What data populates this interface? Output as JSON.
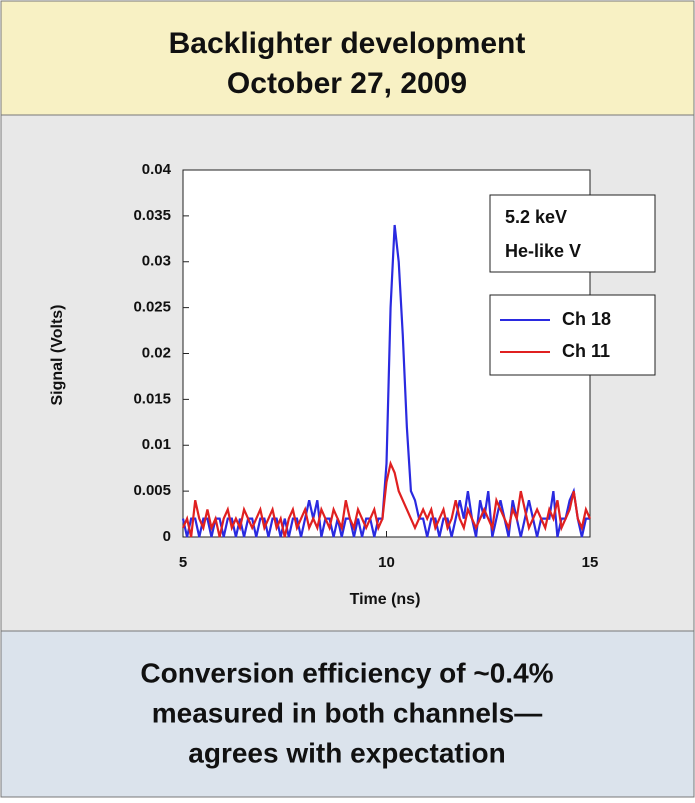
{
  "chart_data": {
    "type": "line",
    "title": "Backlighter development",
    "subtitle": "October 27, 2009",
    "xlabel": "Time (ns)",
    "ylabel": "Signal (Volts)",
    "annotations": [
      "5.2 keV",
      "He-like V"
    ],
    "legend": "upper right",
    "xlim": [
      5,
      15
    ],
    "xticks": [
      5,
      10,
      15
    ],
    "ylim": [
      0,
      0.04
    ],
    "yticks": [
      0,
      0.005,
      0.01,
      0.015,
      0.02,
      0.025,
      0.03,
      0.035,
      0.04
    ],
    "x": [
      5.0,
      5.1,
      5.2,
      5.3,
      5.4,
      5.5,
      5.6,
      5.7,
      5.8,
      5.9,
      6.0,
      6.1,
      6.2,
      6.3,
      6.4,
      6.5,
      6.6,
      6.7,
      6.8,
      6.9,
      7.0,
      7.1,
      7.2,
      7.3,
      7.4,
      7.5,
      7.6,
      7.7,
      7.8,
      7.9,
      8.0,
      8.1,
      8.2,
      8.3,
      8.4,
      8.5,
      8.6,
      8.7,
      8.8,
      8.9,
      9.0,
      9.1,
      9.2,
      9.3,
      9.4,
      9.5,
      9.6,
      9.7,
      9.8,
      9.9,
      10.0,
      10.1,
      10.2,
      10.3,
      10.4,
      10.5,
      10.6,
      10.7,
      10.8,
      10.9,
      11.0,
      11.1,
      11.2,
      11.3,
      11.4,
      11.5,
      11.6,
      11.7,
      11.8,
      11.9,
      12.0,
      12.1,
      12.2,
      12.3,
      12.4,
      12.5,
      12.6,
      12.7,
      12.8,
      12.9,
      13.0,
      13.1,
      13.2,
      13.3,
      13.4,
      13.5,
      13.6,
      13.7,
      13.8,
      13.9,
      14.0,
      14.1,
      14.2,
      14.3,
      14.4,
      14.5,
      14.6,
      14.7,
      14.8,
      14.9,
      15.0
    ],
    "series": [
      {
        "name": "Ch 18",
        "color": "#2a2ae0",
        "values": [
          0.002,
          0,
          0.002,
          0.002,
          0,
          0.002,
          0.002,
          0,
          0.002,
          0.002,
          0,
          0.002,
          0.002,
          0,
          0.002,
          0,
          0.002,
          0.002,
          0,
          0.002,
          0.002,
          0,
          0.002,
          0.002,
          0,
          0.002,
          0,
          0.002,
          0.002,
          0,
          0.002,
          0.004,
          0.002,
          0.004,
          0,
          0.002,
          0.002,
          0,
          0.002,
          0,
          0.002,
          0.002,
          0,
          0.002,
          0,
          0.002,
          0.002,
          0,
          0.002,
          0.002,
          0.008,
          0.025,
          0.034,
          0.03,
          0.022,
          0.012,
          0.005,
          0.004,
          0.002,
          0.002,
          0,
          0.002,
          0.002,
          0,
          0.002,
          0.002,
          0,
          0.002,
          0.004,
          0.002,
          0.005,
          0.002,
          0,
          0.004,
          0.002,
          0.005,
          0,
          0.002,
          0.004,
          0.002,
          0,
          0.004,
          0.002,
          0,
          0.002,
          0.004,
          0.002,
          0,
          0.002,
          0.002,
          0.002,
          0.005,
          0,
          0.002,
          0.002,
          0.004,
          0.005,
          0.002,
          0,
          0.002,
          0.002
        ]
      },
      {
        "name": "Ch 11",
        "color": "#e02020",
        "values": [
          0.001,
          0.002,
          0,
          0.004,
          0.002,
          0.001,
          0.003,
          0.001,
          0.002,
          0,
          0.002,
          0.003,
          0.001,
          0.002,
          0.001,
          0.003,
          0.002,
          0.001,
          0.002,
          0.003,
          0.001,
          0.002,
          0.003,
          0.001,
          0.002,
          0,
          0.002,
          0.003,
          0.001,
          0.002,
          0.003,
          0.001,
          0.002,
          0.001,
          0.003,
          0.002,
          0.001,
          0.003,
          0.002,
          0.001,
          0.004,
          0.002,
          0.001,
          0.003,
          0.002,
          0.001,
          0.002,
          0.003,
          0.001,
          0.002,
          0.006,
          0.008,
          0.007,
          0.005,
          0.004,
          0.003,
          0.002,
          0.001,
          0.002,
          0.003,
          0.002,
          0.003,
          0.001,
          0.002,
          0.003,
          0.001,
          0.002,
          0.004,
          0.002,
          0.001,
          0.003,
          0.002,
          0.001,
          0.002,
          0.003,
          0.002,
          0.001,
          0.004,
          0.003,
          0.002,
          0.001,
          0.003,
          0.002,
          0.005,
          0.003,
          0.001,
          0.002,
          0.003,
          0.002,
          0.001,
          0.003,
          0.002,
          0.004,
          0.001,
          0.002,
          0.003,
          0.005,
          0.002,
          0.001,
          0.003,
          0.002
        ]
      }
    ]
  },
  "footer": {
    "lines": [
      "Conversion efficiency of ~0.4%",
      "measured in both channels—",
      "agrees with expectation"
    ]
  }
}
